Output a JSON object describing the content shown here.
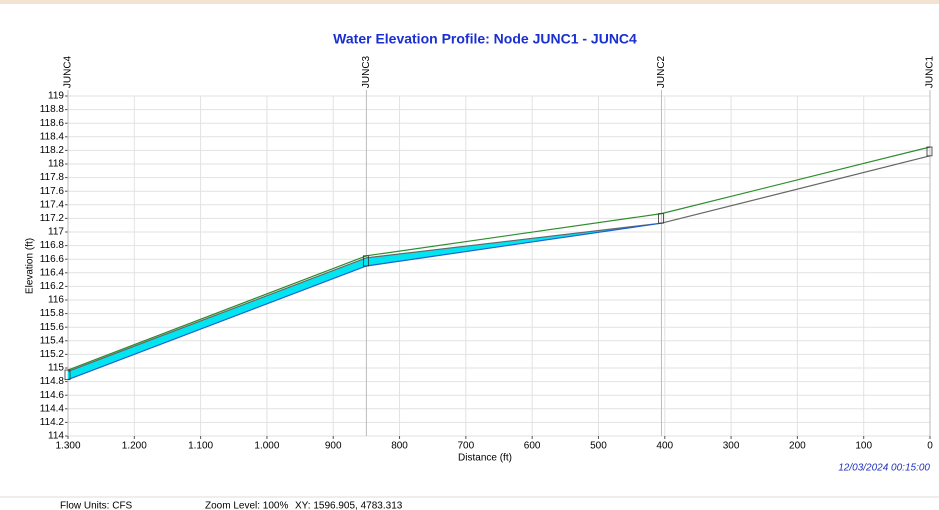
{
  "chart_data": {
    "type": "profile",
    "title": "Water Elevation Profile: Node JUNC1 - JUNC4",
    "xlabel": "Distance (ft)",
    "ylabel": "Elevation (ft)",
    "timestamp": "12/03/2024 00:15:00",
    "nodes": [
      "JUNC4",
      "JUNC3",
      "JUNC2",
      "JUNC1"
    ],
    "x": [
      1300,
      850,
      405,
      0
    ],
    "series": [
      {
        "color": "#2e8b2e",
        "values": [
          114.97,
          116.65,
          117.27,
          118.25
        ]
      },
      {
        "color": "#666666",
        "values": [
          114.95,
          116.62,
          117.13,
          118.12
        ]
      },
      {
        "color": "#1f5fd0",
        "values": [
          114.83,
          116.5,
          117.13,
          null
        ]
      }
    ],
    "water_color": "#00e5f0",
    "xlim": [
      1300,
      0
    ],
    "xticks": [
      {
        "value": 1300,
        "label": "1.300"
      },
      {
        "value": 1200,
        "label": "1.200"
      },
      {
        "value": 1100,
        "label": "1.100"
      },
      {
        "value": 1000,
        "label": "1.000"
      },
      900,
      800,
      700,
      600,
      500,
      400,
      300,
      200,
      100,
      0
    ],
    "ylim": [
      114,
      119
    ],
    "yticks": [
      114,
      114.2,
      114.4,
      114.6,
      114.8,
      115,
      115.2,
      115.4,
      115.6,
      115.8,
      116,
      116.2,
      116.4,
      116.6,
      116.8,
      117,
      117.2,
      117.4,
      117.6,
      117.8,
      118,
      118.2,
      118.4,
      118.6,
      118.8,
      119
    ],
    "grid": true
  },
  "status_bar": [
    "Flow Units: CFS",
    "Zoom Level: 100%",
    "XY: 1596.905, 4783.313"
  ]
}
